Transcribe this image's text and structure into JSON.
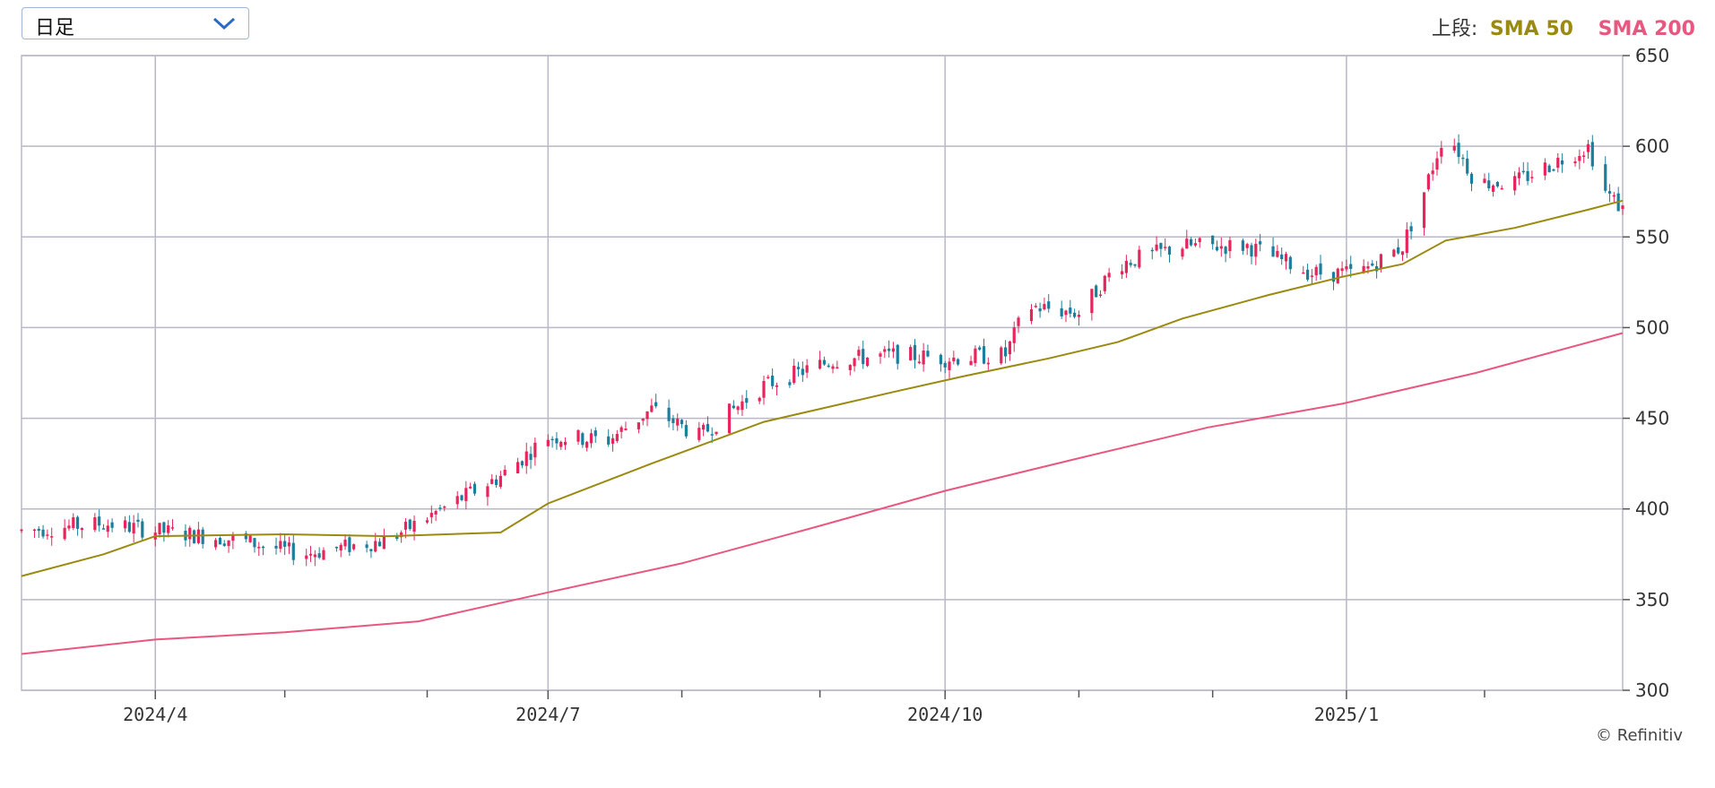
{
  "controls": {
    "period_label": "日足"
  },
  "legend": {
    "label": "上段:",
    "sma50": "SMA 50",
    "sma200": "SMA 200"
  },
  "copyright": "© Refinitiv",
  "colors": {
    "up": "#e8245c",
    "down": "#1a7f9c",
    "sma50": "#9a8a10",
    "sma200": "#e8577f",
    "grid": "#b8b8c8"
  },
  "chart_data": {
    "type": "ohlc",
    "y_ticks": [
      300,
      350,
      400,
      450,
      500,
      550,
      600,
      650
    ],
    "ylim": [
      300,
      650
    ],
    "x_ticks": [
      {
        "label": "2024/4",
        "date": "2024-04-01"
      },
      {
        "label": "2024/7",
        "date": "2024-07-01"
      },
      {
        "label": "2024/10",
        "date": "2024-10-01"
      },
      {
        "label": "2025/1",
        "date": "2025-01-02"
      }
    ],
    "minor_ticks": [
      "2024-05-01",
      "2024-06-03",
      "2024-08-01",
      "2024-09-02",
      "2024-11-01",
      "2024-12-02",
      "2025-02-03"
    ],
    "xlim": [
      "2024-03-01",
      "2025-03-07"
    ],
    "candles_anchor_points": [
      [
        "2024-03-01",
        388
      ],
      [
        "2024-03-20",
        392
      ],
      [
        "2024-04-01",
        388
      ],
      [
        "2024-04-20",
        383
      ],
      [
        "2024-05-05",
        375
      ],
      [
        "2024-05-25",
        383
      ],
      [
        "2024-06-05",
        398
      ],
      [
        "2024-06-20",
        418
      ],
      [
        "2024-07-01",
        440
      ],
      [
        "2024-07-15",
        438
      ],
      [
        "2024-07-25",
        455
      ],
      [
        "2024-08-05",
        440
      ],
      [
        "2024-08-20",
        468
      ],
      [
        "2024-09-05",
        482
      ],
      [
        "2024-09-20",
        485
      ],
      [
        "2024-10-01",
        483
      ],
      [
        "2024-10-15",
        485
      ],
      [
        "2024-10-20",
        512
      ],
      [
        "2024-11-01",
        508
      ],
      [
        "2024-11-10",
        535
      ],
      [
        "2024-11-25",
        545
      ],
      [
        "2024-12-10",
        545
      ],
      [
        "2024-12-25",
        530
      ],
      [
        "2025-01-05",
        530
      ],
      [
        "2025-01-15",
        545
      ],
      [
        "2025-01-20",
        575
      ],
      [
        "2025-01-25",
        610
      ],
      [
        "2025-02-01",
        580
      ],
      [
        "2025-02-10",
        580
      ],
      [
        "2025-02-20",
        592
      ],
      [
        "2025-02-27",
        600
      ],
      [
        "2025-03-03",
        575
      ],
      [
        "2025-03-07",
        565
      ]
    ],
    "sma50": [
      [
        "2024-03-01",
        363
      ],
      [
        "2024-03-20",
        375
      ],
      [
        "2024-04-01",
        385
      ],
      [
        "2024-05-01",
        386
      ],
      [
        "2024-05-25",
        385
      ],
      [
        "2024-06-20",
        387
      ],
      [
        "2024-07-01",
        403
      ],
      [
        "2024-07-25",
        425
      ],
      [
        "2024-08-20",
        448
      ],
      [
        "2024-09-20",
        465
      ],
      [
        "2024-10-05",
        473
      ],
      [
        "2024-10-25",
        483
      ],
      [
        "2024-11-10",
        492
      ],
      [
        "2024-11-25",
        505
      ],
      [
        "2024-12-15",
        518
      ],
      [
        "2025-01-01",
        528
      ],
      [
        "2025-01-15",
        535
      ],
      [
        "2025-01-25",
        548
      ],
      [
        "2025-02-10",
        555
      ],
      [
        "2025-02-27",
        565
      ],
      [
        "2025-03-07",
        570
      ]
    ],
    "sma200": [
      [
        "2024-03-01",
        320
      ],
      [
        "2024-04-01",
        328
      ],
      [
        "2024-05-01",
        332
      ],
      [
        "2024-06-01",
        338
      ],
      [
        "2024-07-01",
        354
      ],
      [
        "2024-08-01",
        370
      ],
      [
        "2024-09-01",
        390
      ],
      [
        "2024-10-01",
        410
      ],
      [
        "2024-11-01",
        428
      ],
      [
        "2024-12-01",
        445
      ],
      [
        "2025-01-01",
        458
      ],
      [
        "2025-02-01",
        475
      ],
      [
        "2025-03-07",
        497
      ]
    ]
  }
}
